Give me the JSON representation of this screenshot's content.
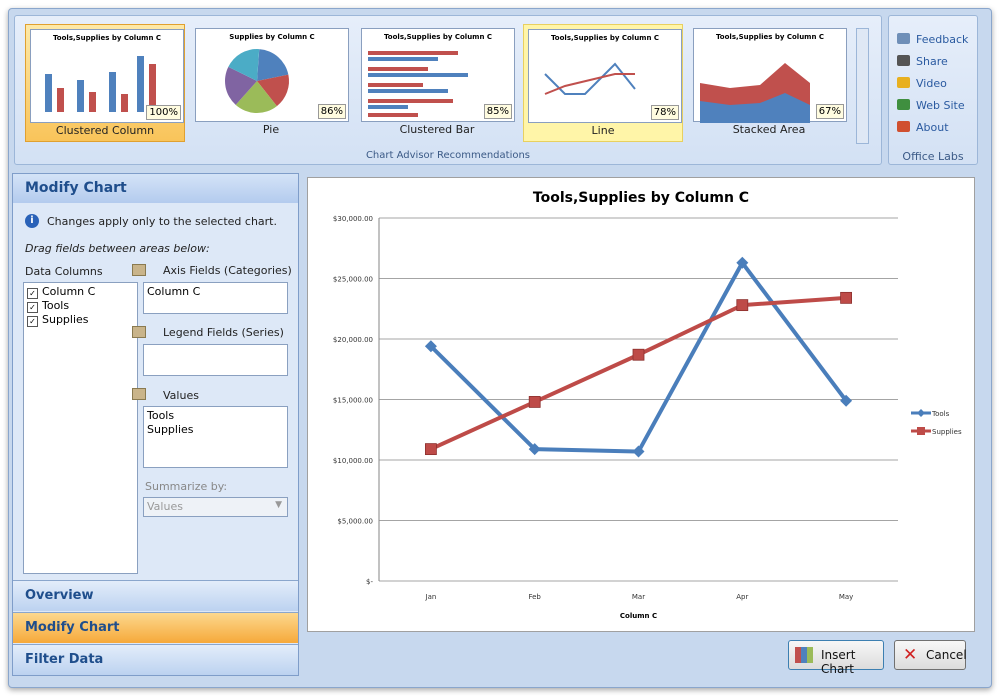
{
  "ribbon": {
    "thumbnails": [
      {
        "title": "Tools,Supplies by Column C",
        "label": "Clustered Column",
        "score": "100%"
      },
      {
        "title": "Supplies by Column C",
        "label": "Pie",
        "score": "86%"
      },
      {
        "title": "Tools,Supplies by Column C",
        "label": "Clustered Bar",
        "score": "85%"
      },
      {
        "title": "Tools,Supplies by Column C",
        "label": "Line",
        "score": "78%"
      },
      {
        "title": "Tools,Supplies by Column C",
        "label": "Stacked Area",
        "score": "67%"
      }
    ],
    "group_label": "Chart Advisor Recommendations",
    "office_labs": {
      "links": [
        "Feedback",
        "Share",
        "Video",
        "Web Site",
        "About"
      ],
      "label": "Office Labs"
    }
  },
  "panel": {
    "title": "Modify Chart",
    "info": "Changes apply only to the selected chart.",
    "hint": "Drag fields between areas below:",
    "data_columns": {
      "label": "Data Columns",
      "items": [
        "Column C",
        "Tools",
        "Supplies"
      ]
    },
    "axis_fields": {
      "label": "Axis Fields (Categories)",
      "items": [
        "Column C"
      ]
    },
    "legend_fields": {
      "label": "Legend Fields (Series)",
      "items": []
    },
    "values": {
      "label": "Values",
      "items": [
        "Tools",
        "Supplies"
      ]
    },
    "summarize": {
      "label": "Summarize by:",
      "value": "Values"
    }
  },
  "nav": [
    "Overview",
    "Modify Chart",
    "Filter Data"
  ],
  "buttons": [
    "Insert Chart",
    "Cancel"
  ],
  "chart_data": {
    "type": "line",
    "title": "Tools,Supplies by Column C",
    "x_label": "Column C",
    "categories": [
      "Jan",
      "Feb",
      "Mar",
      "Apr",
      "May"
    ],
    "series": [
      {
        "name": "Tools",
        "color": "#4a7ebb",
        "marker": "diamond",
        "values": [
          19400,
          10900,
          10700,
          26300,
          14900
        ]
      },
      {
        "name": "Supplies",
        "color": "#be4b48",
        "marker": "square",
        "values": [
          10900,
          14800,
          18700,
          22800,
          23400
        ]
      }
    ],
    "ylim": [
      0,
      30000
    ],
    "yticks": [
      {
        "value": 0,
        "label": "$-"
      },
      {
        "value": 5000,
        "label": "$5,000.00"
      },
      {
        "value": 10000,
        "label": "$10,000.00"
      },
      {
        "value": 15000,
        "label": "$15,000.00"
      },
      {
        "value": 20000,
        "label": "$20,000.00"
      },
      {
        "value": 25000,
        "label": "$25,000.00"
      },
      {
        "value": 30000,
        "label": "$30,000.00"
      }
    ],
    "grid": true,
    "legend": "right"
  }
}
